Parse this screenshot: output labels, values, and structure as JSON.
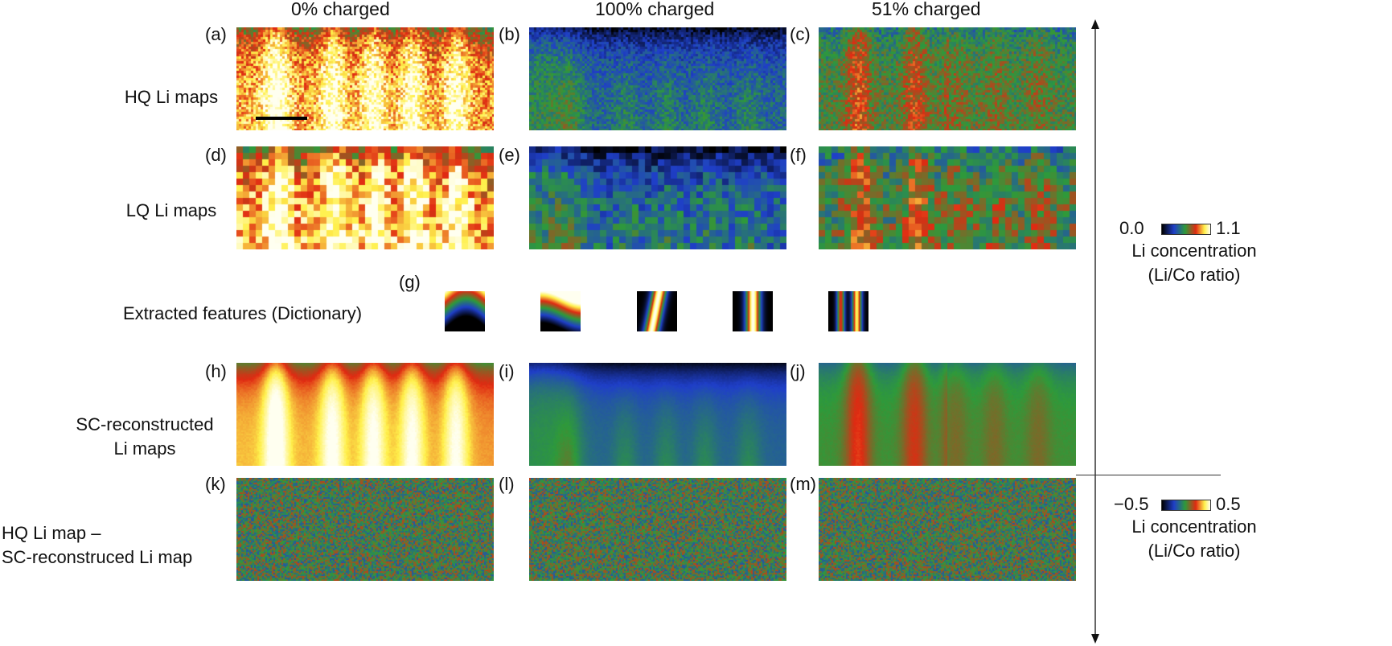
{
  "columns": [
    "0% charged",
    "100% charged",
    "51% charged"
  ],
  "rows": [
    {
      "label": "HQ Li maps",
      "panels": [
        "(a)",
        "(b)",
        "(c)"
      ]
    },
    {
      "label": "LQ Li maps",
      "panels": [
        "(d)",
        "(e)",
        "(f)"
      ]
    },
    {
      "label_lines": [
        "SC-reconstructed",
        "Li maps"
      ],
      "panels": [
        "(h)",
        "(i)",
        "(j)"
      ]
    },
    {
      "label_lines": [
        "HQ Li map –",
        "SC-reconstruced Li map"
      ],
      "panels": [
        "(k)",
        "(l)",
        "(m)"
      ]
    }
  ],
  "dictionary": {
    "panel": "(g)",
    "label": "Extracted features (Dictionary)",
    "count": 5
  },
  "colorbar_top": {
    "min": "0.0",
    "max": "1.1",
    "title_lines": [
      "Li concentration",
      "(Li/Co ratio)"
    ]
  },
  "colorbar_bottom": {
    "min": "−0.5",
    "max": "0.5",
    "title_lines": [
      "Li concentration",
      "(Li/Co ratio)"
    ]
  },
  "colors": {
    "black": "#000000",
    "blue": "#1f3fc8",
    "green": "#2e9a3a",
    "red": "#e02a12",
    "yellow": "#fff04a",
    "white": "#fffff0"
  }
}
